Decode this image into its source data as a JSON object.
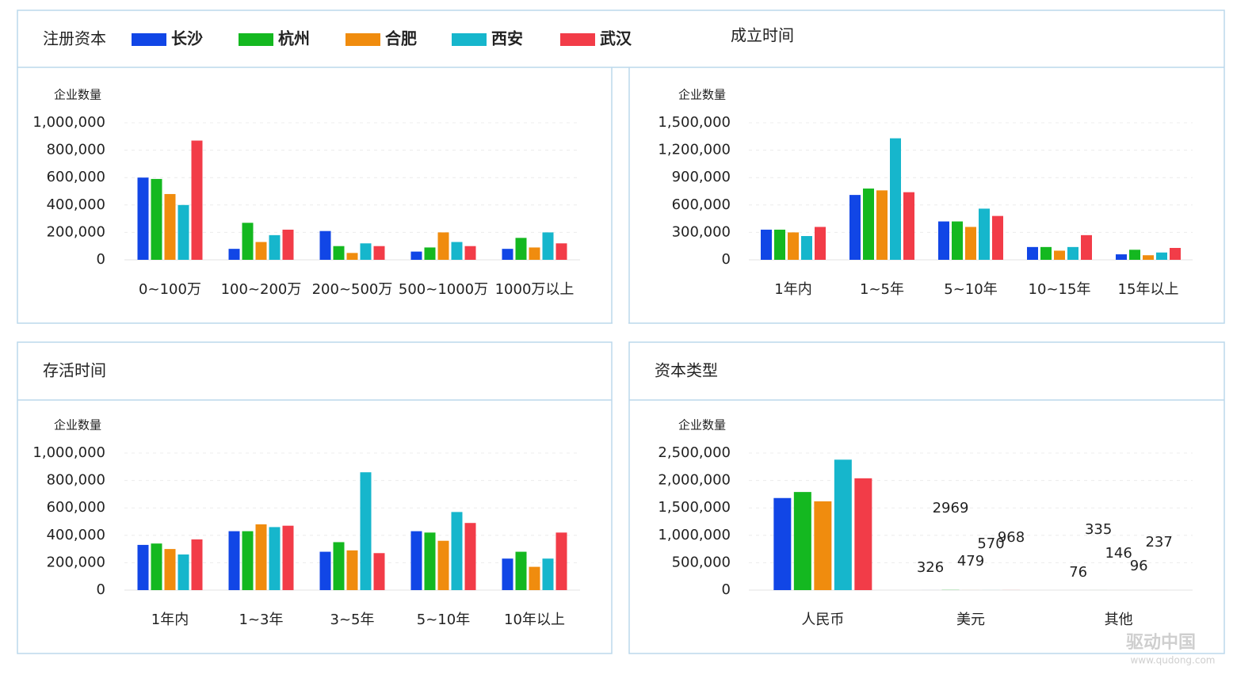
{
  "legend": [
    {
      "name": "长沙",
      "color": "#1146e6"
    },
    {
      "name": "杭州",
      "color": "#14b820"
    },
    {
      "name": "合肥",
      "color": "#f08c0e"
    },
    {
      "name": "西安",
      "color": "#16b6cc"
    },
    {
      "name": "武汉",
      "color": "#f23c48"
    }
  ],
  "chart_data": [
    {
      "type": "bar",
      "title": "注册资本",
      "y_label": "企业数量",
      "categories": [
        "0~100万",
        "100~200万",
        "200~500万",
        "500~1000万",
        "1000万以上"
      ],
      "series": [
        {
          "values": [
            600000,
            80000,
            210000,
            60000,
            80000
          ]
        },
        {
          "values": [
            590000,
            270000,
            100000,
            90000,
            160000
          ]
        },
        {
          "values": [
            480000,
            130000,
            50000,
            200000,
            90000
          ]
        },
        {
          "values": [
            400000,
            180000,
            120000,
            130000,
            200000
          ]
        },
        {
          "values": [
            870000,
            220000,
            100000,
            100000,
            120000
          ]
        }
      ],
      "ylim": [
        0,
        1000000
      ],
      "yticks": [
        0,
        {
          "value": 200000,
          "label": "200,000"
        },
        {
          "value": 400000,
          "label": "400,000"
        },
        {
          "value": 600000,
          "label": "600,000"
        },
        {
          "value": 800000,
          "label": "800,000"
        },
        {
          "value": 1000000,
          "label": "1,000,000"
        }
      ],
      "grid": true
    },
    {
      "type": "bar",
      "title": "成立时间",
      "y_label": "企业数量",
      "categories": [
        "1年内",
        "1~5年",
        "5~10年",
        "10~15年",
        "15年以上"
      ],
      "series": [
        {
          "values": [
            330000,
            710000,
            420000,
            140000,
            60000
          ]
        },
        {
          "values": [
            330000,
            780000,
            420000,
            140000,
            110000
          ]
        },
        {
          "values": [
            300000,
            760000,
            360000,
            100000,
            50000
          ]
        },
        {
          "values": [
            260000,
            1330000,
            560000,
            140000,
            80000
          ]
        },
        {
          "values": [
            360000,
            740000,
            480000,
            270000,
            130000
          ]
        }
      ],
      "ylim": [
        0,
        1500000
      ],
      "yticks": [
        0,
        {
          "value": 300000,
          "label": "300,000"
        },
        {
          "value": 600000,
          "label": "600,000"
        },
        {
          "value": 900000,
          "label": "900,000"
        },
        {
          "value": 1200000,
          "label": "1,200,000"
        },
        {
          "value": 1500000,
          "label": "1,500,000"
        }
      ],
      "grid": true
    },
    {
      "type": "bar",
      "title": "存活时间",
      "y_label": "企业数量",
      "categories": [
        "1年内",
        "1~3年",
        "3~5年",
        "5~10年",
        "10年以上"
      ],
      "series": [
        {
          "values": [
            330000,
            430000,
            280000,
            430000,
            230000
          ]
        },
        {
          "values": [
            340000,
            430000,
            350000,
            420000,
            280000
          ]
        },
        {
          "values": [
            300000,
            480000,
            290000,
            360000,
            170000
          ]
        },
        {
          "values": [
            260000,
            460000,
            860000,
            570000,
            230000
          ]
        },
        {
          "values": [
            370000,
            470000,
            270000,
            490000,
            420000
          ]
        }
      ],
      "ylim": [
        0,
        1000000
      ],
      "yticks": [
        0,
        {
          "value": 200000,
          "label": "200,000"
        },
        {
          "value": 400000,
          "label": "400,000"
        },
        {
          "value": 600000,
          "label": "600,000"
        },
        {
          "value": 800000,
          "label": "800,000"
        },
        {
          "value": 1000000,
          "label": "1,000,000"
        }
      ],
      "grid": true
    },
    {
      "type": "bar",
      "title": "资本类型",
      "y_label": "企业数量",
      "categories": [
        "人民币",
        "美元",
        "其他"
      ],
      "series": [
        {
          "values": [
            1680000,
            326,
            76
          ]
        },
        {
          "values": [
            1790000,
            2969,
            335
          ]
        },
        {
          "values": [
            1620000,
            479,
            146
          ]
        },
        {
          "values": [
            2380000,
            570,
            96
          ]
        },
        {
          "values": [
            2040000,
            968,
            237
          ]
        }
      ],
      "ylim": [
        0,
        2500000
      ],
      "yticks": [
        0,
        {
          "value": 500000,
          "label": "500,000"
        },
        {
          "value": 1000000,
          "label": "1,000,000"
        },
        {
          "value": 1500000,
          "label": "1,500,000"
        },
        {
          "value": 2000000,
          "label": "2,000,000"
        },
        {
          "value": 2500000,
          "label": "2,500,000"
        }
      ],
      "grid": true
    }
  ],
  "watermark": {
    "brand": "驱动中国",
    "url": "www.qudong.com"
  }
}
